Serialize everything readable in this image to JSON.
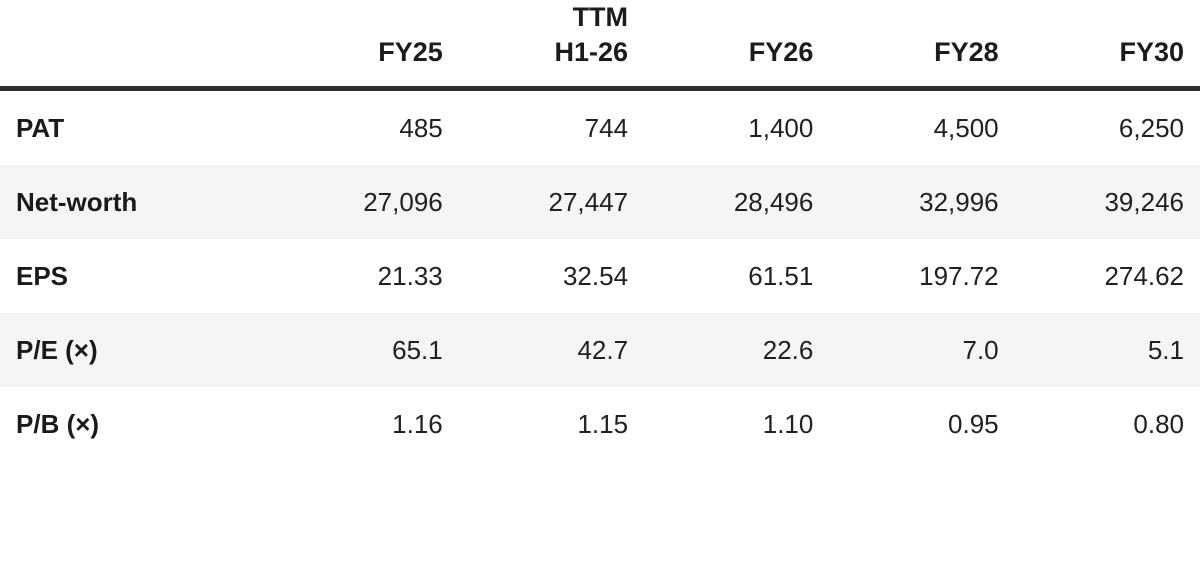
{
  "chart_data": {
    "type": "table",
    "title": "",
    "header": {
      "corner": "",
      "fy25": "FY25",
      "ttm_top": "TTM",
      "ttm_bottom": "H1-26",
      "fy26": "FY26",
      "fy28": "FY28",
      "fy30": "FY30"
    },
    "columns": [
      "",
      "FY25",
      "TTM H1-26",
      "FY26",
      "FY28",
      "FY30"
    ],
    "rows": [
      {
        "label": "PAT",
        "values": [
          "485",
          "744",
          "1,400",
          "4,500",
          "6,250"
        ]
      },
      {
        "label": "Net-worth",
        "values": [
          "27,096",
          "27,447",
          "28,496",
          "32,996",
          "39,246"
        ]
      },
      {
        "label": "EPS",
        "values": [
          "21.33",
          "32.54",
          "61.51",
          "197.72",
          "274.62"
        ]
      },
      {
        "label": "P/E (×)",
        "values": [
          "65.1",
          "42.7",
          "22.6",
          "7.0",
          "5.1"
        ]
      },
      {
        "label": "P/B (×)",
        "values": [
          "1.16",
          "1.15",
          "1.10",
          "0.95",
          "0.80"
        ]
      }
    ],
    "layout": {
      "striped_rows": [
        1,
        3
      ],
      "header_rule": true
    }
  },
  "colors": {
    "header_rule": "#2e2e2e",
    "stripe": "#f5f5f6",
    "text": "#202124",
    "background": "#ffffff"
  }
}
